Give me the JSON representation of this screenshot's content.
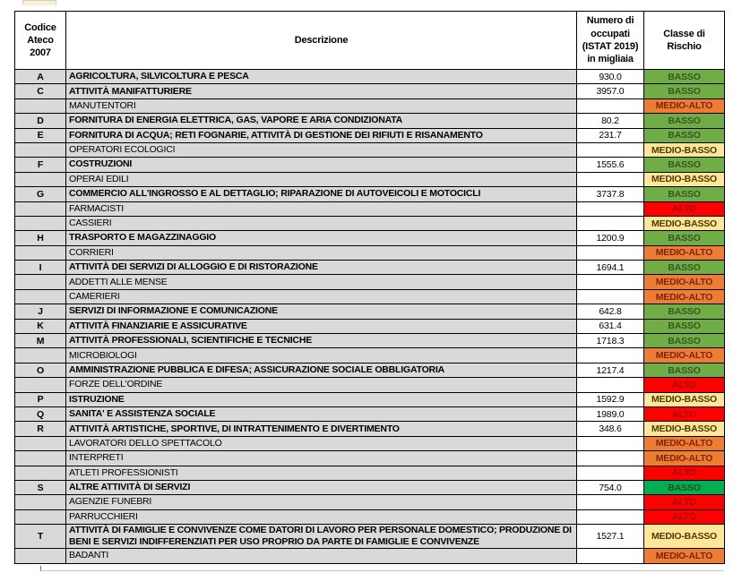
{
  "table": {
    "columns": [
      {
        "label": "Codice\nAteco\n2007"
      },
      {
        "label": "Descrizione"
      },
      {
        "label": "Numero di\noccupati\n(ISTAT 2019)\nin migliaia"
      },
      {
        "label": "Classe di\nRischio"
      }
    ],
    "rows": [
      {
        "codice": "A",
        "descrizione": "AGRICOLTURA, SILVICOLTURA E PESCA",
        "occupati": "930.0",
        "rischio": "BASSO",
        "style": "BASSO",
        "level": "category"
      },
      {
        "codice": "C",
        "descrizione": "ATTIVITÀ MANIFATTURIERE",
        "occupati": "3957.0",
        "rischio": "BASSO",
        "style": "BASSO",
        "level": "category"
      },
      {
        "codice": "",
        "descrizione": "MANUTENTORI",
        "occupati": "",
        "rischio": "MEDIO-ALTO",
        "style": "MEDIO-ALTO",
        "level": "sub"
      },
      {
        "codice": "D",
        "descrizione": "FORNITURA DI ENERGIA ELETTRICA, GAS, VAPORE E ARIA CONDIZIONATA",
        "occupati": "80.2",
        "rischio": "BASSO",
        "style": "BASSO",
        "level": "category"
      },
      {
        "codice": "E",
        "descrizione": "FORNITURA DI ACQUA; RETI FOGNARIE, ATTIVITÀ DI GESTIONE DEI RIFIUTI E RISANAMENTO",
        "occupati": "231.7",
        "rischio": "BASSO",
        "style": "BASSO",
        "level": "category"
      },
      {
        "codice": "",
        "descrizione": "OPERATORI ECOLOGICI",
        "occupati": "",
        "rischio": "MEDIO-BASSO",
        "style": "MEDIO-BASSO",
        "level": "sub"
      },
      {
        "codice": "F",
        "descrizione": "COSTRUZIONI",
        "occupati": "1555.6",
        "rischio": "BASSO",
        "style": "BASSO",
        "level": "category"
      },
      {
        "codice": "",
        "descrizione": "OPERAI EDILI",
        "occupati": "",
        "rischio": "MEDIO-BASSO",
        "style": "MEDIO-BASSO",
        "level": "sub"
      },
      {
        "codice": "G",
        "descrizione": "COMMERCIO ALL'INGROSSO E AL DETTAGLIO; RIPARAZIONE DI AUTOVEICOLI E MOTOCICLI",
        "occupati": "3737.8",
        "rischio": "BASSO",
        "style": "BASSO",
        "level": "category"
      },
      {
        "codice": "",
        "descrizione": "FARMACISTI",
        "occupati": "",
        "rischio": "ALTO",
        "style": "ALTO",
        "level": "sub"
      },
      {
        "codice": "",
        "descrizione": "CASSIERI",
        "occupati": "",
        "rischio": "MEDIO-BASSO",
        "style": "MEDIO-BASSO",
        "level": "sub"
      },
      {
        "codice": "H",
        "descrizione": "TRASPORTO E MAGAZZINAGGIO",
        "occupati": "1200.9",
        "rischio": "BASSO",
        "style": "BASSO",
        "level": "category"
      },
      {
        "codice": "",
        "descrizione": "CORRIERI",
        "occupati": "",
        "rischio": "MEDIO-ALTO",
        "style": "MEDIO-ALTO",
        "level": "sub"
      },
      {
        "codice": "I",
        "descrizione": "ATTIVITÀ DEI SERVIZI DI ALLOGGIO E DI RISTORAZIONE",
        "occupati": "1694.1",
        "rischio": "BASSO",
        "style": "BASSO",
        "level": "category"
      },
      {
        "codice": "",
        "descrizione": "ADDETTI ALLE MENSE",
        "occupati": "",
        "rischio": "MEDIO-ALTO",
        "style": "MEDIO-ALTO",
        "level": "sub"
      },
      {
        "codice": "",
        "descrizione": "CAMERIERI",
        "occupati": "",
        "rischio": "MEDIO-ALTO",
        "style": "MEDIO-ALTO",
        "level": "sub"
      },
      {
        "codice": "J",
        "descrizione": "SERVIZI DI INFORMAZIONE E COMUNICAZIONE",
        "occupati": "642.8",
        "rischio": "BASSO",
        "style": "BASSO",
        "level": "category"
      },
      {
        "codice": "K",
        "descrizione": "ATTIVITÀ FINANZIARIE E ASSICURATIVE",
        "occupati": "631.4",
        "rischio": "BASSO",
        "style": "BASSO",
        "level": "category"
      },
      {
        "codice": "M",
        "descrizione": "ATTIVITÀ PROFESSIONALI, SCIENTIFICHE E TECNICHE",
        "occupati": "1718.3",
        "rischio": "BASSO",
        "style": "BASSO",
        "level": "category"
      },
      {
        "codice": "",
        "descrizione": "MICROBIOLOGI",
        "occupati": "",
        "rischio": "MEDIO-ALTO",
        "style": "MEDIO-ALTO",
        "level": "sub"
      },
      {
        "codice": "O",
        "descrizione": "AMMINISTRAZIONE PUBBLICA E DIFESA; ASSICURAZIONE SOCIALE OBBLIGATORIA",
        "occupati": "1217.4",
        "rischio": "BASSO",
        "style": "BASSO",
        "level": "category"
      },
      {
        "codice": "",
        "descrizione": "FORZE DELL'ORDINE",
        "occupati": "",
        "rischio": "ALTO",
        "style": "ALTO",
        "level": "sub"
      },
      {
        "codice": "P",
        "descrizione": "ISTRUZIONE",
        "occupati": "1592.9",
        "rischio": "MEDIO-BASSO",
        "style": "MEDIO-BASSO",
        "level": "category"
      },
      {
        "codice": "Q",
        "descrizione": "SANITA' E ASSISTENZA SOCIALE",
        "occupati": "1989.0",
        "rischio": "ALTO",
        "style": "ALTO",
        "level": "category"
      },
      {
        "codice": "R",
        "descrizione": "ATTIVITÀ ARTISTICHE, SPORTIVE, DI INTRATTENIMENTO E DIVERTIMENTO",
        "occupati": "348.6",
        "rischio": "MEDIO-BASSO",
        "style": "MEDIO-BASSO",
        "level": "category"
      },
      {
        "codice": "",
        "descrizione": "LAVORATORI DELLO SPETTACOLO",
        "occupati": "",
        "rischio": "MEDIO-ALTO",
        "style": "MEDIO-ALTO",
        "level": "sub"
      },
      {
        "codice": "",
        "descrizione": "INTERPRETI",
        "occupati": "",
        "rischio": "MEDIO-ALTO",
        "style": "MEDIO-ALTO",
        "level": "sub"
      },
      {
        "codice": "",
        "descrizione": "ATLETI PROFESSIONISTI",
        "occupati": "",
        "rischio": "ALTO",
        "style": "ALTO",
        "level": "sub"
      },
      {
        "codice": "S",
        "descrizione": "ALTRE ATTIVITÀ DI SERVIZI",
        "occupati": "754.0",
        "rischio": "BASSO",
        "style": "BASSO_VIVID",
        "level": "category"
      },
      {
        "codice": "",
        "descrizione": "AGENZIE FUNEBRI",
        "occupati": "",
        "rischio": "ALTO",
        "style": "ALTO",
        "level": "sub"
      },
      {
        "codice": "",
        "descrizione": "PARRUCCHIERI",
        "occupati": "",
        "rischio": "ALTO",
        "style": "ALTO",
        "level": "sub"
      },
      {
        "codice": "T",
        "descrizione": "ATTIVITÀ DI FAMIGLIE E CONVIVENZE COME DATORI DI LAVORO PER PERSONALE DOMESTICO; PRODUZIONE DI BENI E SERVIZI INDIFFERENZIATI PER USO PROPRIO  DA PARTE DI FAMIGLIE E CONVIVENZE",
        "occupati": "1527.1",
        "rischio": "MEDIO-BASSO",
        "style": "MEDIO-BASSO",
        "level": "category"
      },
      {
        "codice": "",
        "descrizione": "BADANTI",
        "occupati": "",
        "rischio": "MEDIO-ALTO",
        "style": "MEDIO-ALTO",
        "level": "sub"
      }
    ]
  },
  "colors": {
    "cell_gray": "#D9D9D9",
    "border": "#000000",
    "risk": {
      "BASSO": {
        "bg": "#70AD47",
        "text": "#375623"
      },
      "BASSO_VIVID": {
        "bg": "#00B050",
        "text": "#1E4D1E"
      },
      "MEDIO-BASSO": {
        "bg": "#FFE699",
        "text": "#4A3B00"
      },
      "MEDIO-ALTO": {
        "bg": "#ED7D31",
        "text": "#7C2412"
      },
      "ALTO": {
        "bg": "#FF0000",
        "text": "#A00000"
      }
    }
  }
}
